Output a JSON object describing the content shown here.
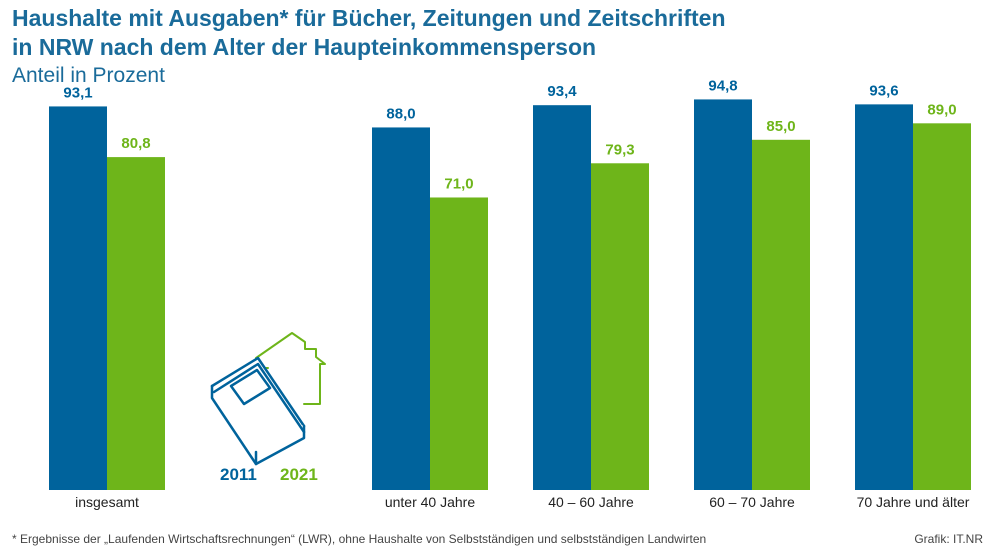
{
  "header": {
    "title_line1": "Haushalte mit Ausgaben* für Bücher, Zeitungen und Zeitschriften",
    "title_line2": "in NRW nach dem Alter der Haupteinkommensperson",
    "subtitle": "Anteil in Prozent"
  },
  "colors": {
    "series_2011": "#00639c",
    "series_2021": "#6eb51a",
    "title": "#1a6b9a"
  },
  "illustration": {
    "icon": "book-house-icon"
  },
  "chart_data": {
    "type": "bar",
    "categories": [
      "insgesamt",
      "unter 40 Jahre",
      "40 – 60 Jahre",
      "60 – 70 Jahre",
      "70 Jahre und älter"
    ],
    "series": [
      {
        "name": "2011",
        "values": [
          93.1,
          88.0,
          93.4,
          94.8,
          93.6
        ],
        "labels": [
          "93,1",
          "88,0",
          "93,4",
          "94,8",
          "93,6"
        ]
      },
      {
        "name": "2021",
        "values": [
          80.8,
          71.0,
          79.3,
          85.0,
          89.0
        ],
        "labels": [
          "80,8",
          "71,0",
          "79,3",
          "85,0",
          "89,0"
        ]
      }
    ],
    "ylim": [
      0,
      100
    ],
    "grid": false,
    "legend": "center-left"
  },
  "footnote": "* Ergebnisse der „Laufenden Wirtschaftsrechnungen“ (LWR), ohne Haushalte von Selbstständigen und selbstständigen Landwirten",
  "source": "Grafik: IT.NR"
}
